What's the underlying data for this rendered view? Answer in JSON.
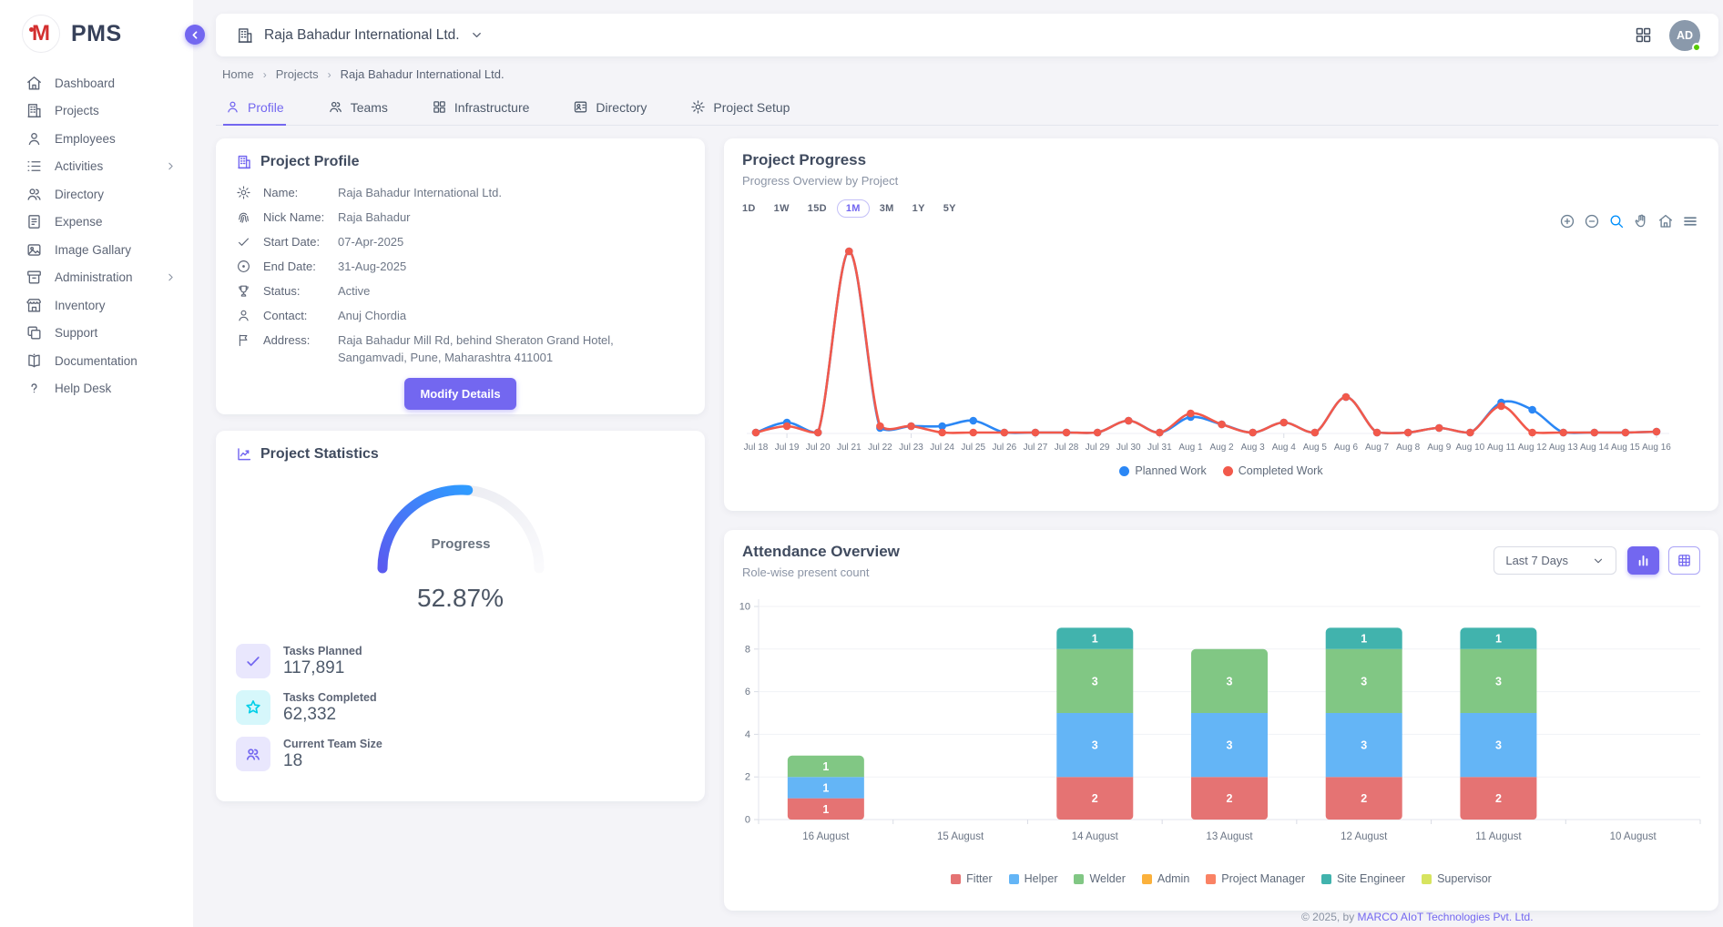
{
  "app": {
    "name": "PMS"
  },
  "sidebar": {
    "items": [
      {
        "id": "dashboard",
        "label": "Dashboard",
        "icon": "home-icon"
      },
      {
        "id": "projects",
        "label": "Projects",
        "icon": "building-icon"
      },
      {
        "id": "employees",
        "label": "Employees",
        "icon": "person-icon"
      },
      {
        "id": "activities",
        "label": "Activities",
        "icon": "list-icon",
        "expandable": true
      },
      {
        "id": "directory",
        "label": "Directory",
        "icon": "people-icon"
      },
      {
        "id": "expense",
        "label": "Expense",
        "icon": "receipt-icon"
      },
      {
        "id": "image-gallery",
        "label": "Image Gallary",
        "icon": "image-icon"
      },
      {
        "id": "administration",
        "label": "Administration",
        "icon": "archive-icon",
        "expandable": true
      },
      {
        "id": "inventory",
        "label": "Inventory",
        "icon": "store-icon"
      },
      {
        "id": "support",
        "label": "Support",
        "icon": "copy-icon"
      },
      {
        "id": "documentation",
        "label": "Documentation",
        "icon": "book-icon"
      },
      {
        "id": "help-desk",
        "label": "Help Desk",
        "icon": "question-icon"
      }
    ]
  },
  "header": {
    "company": "Raja Bahadur International Ltd.",
    "avatar_initials": "AD"
  },
  "breadcrumb": {
    "items": [
      "Home",
      "Projects",
      "Raja Bahadur International Ltd."
    ]
  },
  "tabs": [
    {
      "label": "Profile",
      "icon": "person-icon",
      "active": true
    },
    {
      "label": "Teams",
      "icon": "people-icon",
      "active": false
    },
    {
      "label": "Infrastructure",
      "icon": "grid-icon",
      "active": false
    },
    {
      "label": "Directory",
      "icon": "contact-card-icon",
      "active": false
    },
    {
      "label": "Project Setup",
      "icon": "gear-icon",
      "active": false
    }
  ],
  "profile_card": {
    "title": "Project Profile",
    "fields": [
      {
        "icon": "gear-icon",
        "label": "Name:",
        "value": "Raja Bahadur International Ltd."
      },
      {
        "icon": "fingerprint-icon",
        "label": "Nick Name:",
        "value": "Raja Bahadur"
      },
      {
        "icon": "check-icon",
        "label": "Start Date:",
        "value": "07-Apr-2025"
      },
      {
        "icon": "record-icon",
        "label": "End Date:",
        "value": "31-Aug-2025"
      },
      {
        "icon": "trophy-icon",
        "label": "Status:",
        "value": "Active"
      },
      {
        "icon": "person-icon",
        "label": "Contact:",
        "value": "Anuj Chordia"
      },
      {
        "icon": "flag-icon",
        "label": "Address:",
        "value": "Raja Bahadur Mill Rd, behind Sheraton Grand Hotel, Sangamvadi, Pune, Maharashtra 411001"
      }
    ],
    "button_label": "Modify Details"
  },
  "stats_card": {
    "title": "Project Statistics",
    "gauge": {
      "label": "Progress",
      "percent": 52.87,
      "display": "52.87%",
      "color_start": "#5a5bf0",
      "color_end": "#2f9bff",
      "track_color": "#e7e8ef"
    },
    "stats": [
      {
        "icon": "check-icon",
        "label": "Tasks Planned",
        "value": "117,891",
        "accent": "#7367f0",
        "bg": "#e9e7fd"
      },
      {
        "icon": "star-icon",
        "label": "Tasks Completed",
        "value": "62,332",
        "accent": "#00cfe8",
        "bg": "#d6f7fb"
      },
      {
        "icon": "team-icon",
        "label": "Current Team Size",
        "value": "18",
        "accent": "#7367f0",
        "bg": "#e9e7fd"
      }
    ]
  },
  "progress_panel": {
    "title": "Project Progress",
    "subtitle": "Progress Overview by Project",
    "ranges": [
      "1D",
      "1W",
      "15D",
      "1M",
      "3M",
      "1Y",
      "5Y"
    ],
    "active_range": "1M",
    "toolbar": [
      "zoom-in-icon",
      "zoom-out-icon",
      "selection-zoom-icon",
      "pan-icon",
      "home-icon",
      "menu-icon"
    ]
  },
  "attendance_panel": {
    "title": "Attendance Overview",
    "subtitle": "Role-wise present count",
    "period_selector": "Last 7 Days",
    "view_toggles": [
      "bar-chart-icon",
      "table-icon"
    ]
  },
  "footer": {
    "prefix": "© 2025, by ",
    "link": "MARCO AIoT Technologies Pvt. Ltd."
  },
  "chart_data": [
    {
      "id": "project_progress",
      "type": "line",
      "title": "Project Progress",
      "x": [
        "Jul 18",
        "Jul 19",
        "Jul 20",
        "Jul 21",
        "Jul 22",
        "Jul 23",
        "Jul 24",
        "Jul 25",
        "Jul 26",
        "Jul 27",
        "Jul 28",
        "Jul 29",
        "Jul 30",
        "Jul 31",
        "Aug 1",
        "Aug 2",
        "Aug 3",
        "Aug 4",
        "Aug 5",
        "Aug 6",
        "Aug 7",
        "Aug 8",
        "Aug 9",
        "Aug 10",
        "Aug 11",
        "Aug 12",
        "Aug 13",
        "Aug 14",
        "Aug 15",
        "Aug 16"
      ],
      "ylim": [
        0,
        100
      ],
      "grid": false,
      "legend_position": "bottom",
      "series": [
        {
          "name": "Planned Work",
          "color": "#2b87f5",
          "values": [
            0.5,
            6,
            0.5,
            100,
            3,
            4,
            4,
            7,
            0.5,
            0.5,
            0.5,
            0.5,
            7,
            0.5,
            9,
            5,
            0.5,
            6,
            0.5,
            20,
            0.5,
            0.5,
            3,
            0.5,
            17,
            13,
            0.5,
            0.5,
            0.5,
            1
          ]
        },
        {
          "name": "Completed Work",
          "color": "#f2594b",
          "values": [
            0.5,
            4,
            0.5,
            100,
            4,
            4,
            0.5,
            0.5,
            0.5,
            0.5,
            0.5,
            0.5,
            7,
            0.5,
            11,
            5,
            0.5,
            6,
            0.5,
            20,
            0.5,
            0.5,
            3,
            0.5,
            15,
            0.5,
            0.5,
            0.5,
            0.5,
            1
          ]
        }
      ]
    },
    {
      "id": "attendance",
      "type": "bar",
      "stacked": true,
      "categories": [
        "16 August",
        "15 August",
        "14 August",
        "13 August",
        "12 August",
        "11 August",
        "10 August"
      ],
      "ylim": [
        0,
        10
      ],
      "yticks": [
        0,
        2,
        4,
        6,
        8,
        10
      ],
      "legend_position": "bottom",
      "series": [
        {
          "name": "Fitter",
          "color": "#e57373",
          "values": [
            1,
            0,
            2,
            2,
            2,
            2,
            0
          ]
        },
        {
          "name": "Helper",
          "color": "#64b5f6",
          "values": [
            1,
            0,
            3,
            3,
            3,
            3,
            0
          ]
        },
        {
          "name": "Welder",
          "color": "#81c784",
          "values": [
            1,
            0,
            3,
            3,
            3,
            3,
            0
          ]
        },
        {
          "name": "Admin",
          "color": "#fbb13c",
          "values": [
            0,
            0,
            0,
            0,
            0,
            0,
            0
          ]
        },
        {
          "name": "Project Manager",
          "color": "#fa8264",
          "values": [
            0,
            0,
            0,
            0,
            0,
            0,
            0
          ]
        },
        {
          "name": "Site Engineer",
          "color": "#41b3ad",
          "values": [
            0,
            0,
            1,
            0,
            1,
            1,
            0
          ]
        },
        {
          "name": "Supervisor",
          "color": "#d7e45f",
          "values": [
            0,
            0,
            0,
            0,
            0,
            0,
            0
          ]
        }
      ]
    }
  ]
}
